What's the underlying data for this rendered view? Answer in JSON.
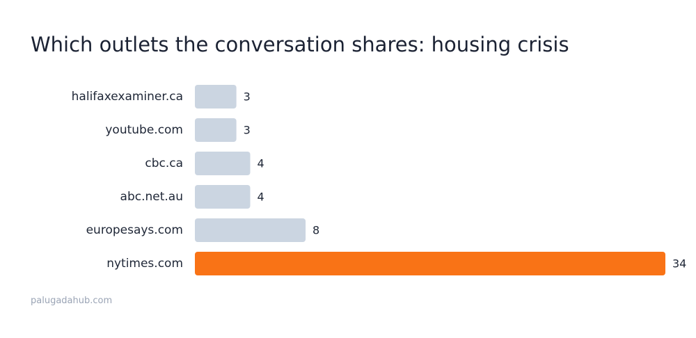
{
  "title": "Which outlets the conversation shares: housing crisis",
  "footer": "palugadahub.com",
  "colors": {
    "bar_default": "#cbd5e1",
    "bar_highlight": "#f97316",
    "label_text": "#1e2636",
    "value_text": "#1e2636"
  },
  "chart_data": {
    "type": "bar",
    "orientation": "horizontal",
    "title": "Which outlets the conversation shares: housing crisis",
    "xlabel": "",
    "ylabel": "",
    "grid": false,
    "legend": "none",
    "categories": [
      "halifaxexaminer.ca",
      "youtube.com",
      "cbc.ca",
      "abc.net.au",
      "europesays.com",
      "nytimes.com"
    ],
    "values": [
      3,
      3,
      4,
      4,
      8,
      34
    ],
    "highlight": [
      false,
      false,
      false,
      false,
      false,
      true
    ],
    "xlim": [
      0,
      34
    ]
  }
}
